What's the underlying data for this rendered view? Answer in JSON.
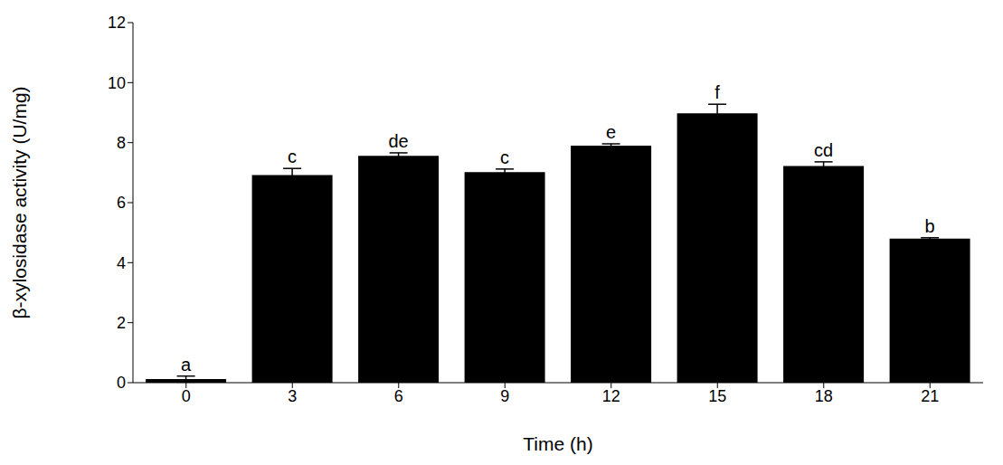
{
  "chart_data": {
    "type": "bar",
    "x_label": "Time (h)",
    "y_label": "β-xylosidase activity (U/mg)",
    "categories": [
      "0",
      "3",
      "6",
      "9",
      "12",
      "15",
      "18",
      "21"
    ],
    "values": [
      0.12,
      6.92,
      7.56,
      7.02,
      7.9,
      8.98,
      7.22,
      4.8
    ],
    "error": [
      0.1,
      0.22,
      0.1,
      0.1,
      0.06,
      0.3,
      0.14,
      0.03
    ],
    "annotations": [
      "a",
      "c",
      "de",
      "c",
      "e",
      "f",
      "cd",
      "b"
    ],
    "color": "#000000",
    "ylim": [
      0,
      12
    ],
    "yticks": [
      0,
      2,
      4,
      6,
      8,
      10,
      12
    ],
    "grid": false
  }
}
